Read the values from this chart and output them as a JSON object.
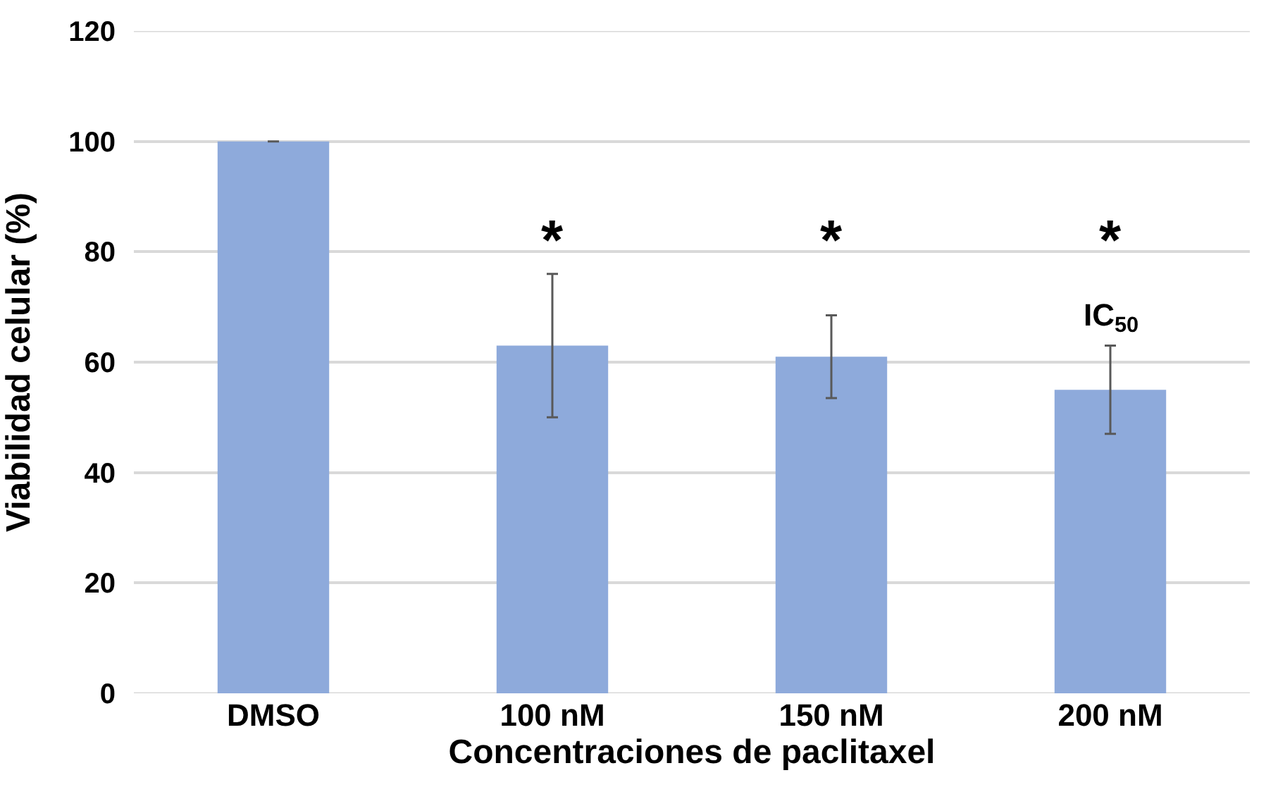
{
  "chart_data": {
    "type": "bar",
    "xlabel": "Concentraciones de paclitaxel",
    "ylabel": "Viabilidad celular (%)",
    "categories": [
      "DMSO",
      "100 nM",
      "150 nM",
      "200 nM"
    ],
    "values": [
      100,
      63,
      61,
      55
    ],
    "color": "#8eaadb",
    "errors": [
      null,
      [
        50,
        76
      ],
      [
        53.5,
        68.5
      ],
      [
        47,
        63
      ]
    ],
    "ylim": [
      0,
      120
    ],
    "yticks": [
      0,
      20,
      40,
      60,
      80,
      100,
      120
    ],
    "grid": "y",
    "annotations": [
      "*",
      "*",
      "*",
      "IC$_{50}$"
    ]
  }
}
